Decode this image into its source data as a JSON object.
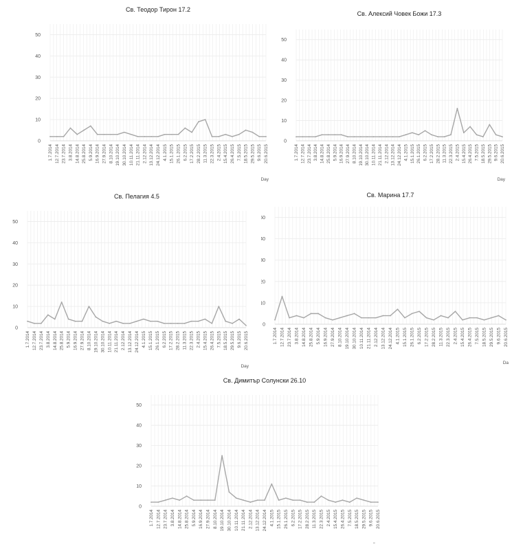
{
  "colors": {
    "line": "#a6a6a6",
    "grid": "#ebebeb",
    "axis": "#cfcfcf"
  },
  "x_ticks": [
    "1.7.2014",
    "12.7.2014",
    "23.7.2014",
    "3.8.2014",
    "14.8.2014",
    "25.8.2014",
    "5.9.2014",
    "16.9.2014",
    "27.9.2014",
    "8.10.2014",
    "19.10.2014",
    "30.10.2014",
    "10.11.2014",
    "21.11.2014",
    "2.12.2014",
    "13.12.2014",
    "24.12.2014",
    "4.1.2015",
    "15.1.2015",
    "26.1.2015",
    "6.2.2015",
    "17.2.2015",
    "28.2.2015",
    "11.3.2015",
    "22.3.2015",
    "2.4.2015",
    "15.4.2015",
    "26.4.2015",
    "7.5.2015",
    "18.5.2015",
    "29.5.2015",
    "9.6.2015",
    "20.6.2015"
  ],
  "chart_data": [
    {
      "type": "line",
      "title": "Св. Теодор Тирон 17.2",
      "xlabel": "Day",
      "ylabel": "",
      "ylim": [
        0,
        55
      ],
      "yticks": [
        0,
        10,
        20,
        30,
        40,
        50
      ],
      "grid": true,
      "x": [
        "1.7.2014",
        "12.7.2014",
        "23.7.2014",
        "3.8.2014",
        "14.8.2014",
        "25.8.2014",
        "5.9.2014",
        "16.9.2014",
        "27.9.2014",
        "8.10.2014",
        "19.10.2014",
        "30.10.2014",
        "10.11.2014",
        "21.11.2014",
        "2.12.2014",
        "13.12.2014",
        "24.12.2014",
        "4.1.2015",
        "15.1.2015",
        "26.1.2015",
        "6.2.2015",
        "17.2.2015",
        "28.2.2015",
        "11.3.2015",
        "22.3.2015",
        "2.4.2015",
        "15.4.2015",
        "26.4.2015",
        "7.5.2015",
        "18.5.2015",
        "29.5.2015",
        "9.6.2015",
        "20.6.2015"
      ],
      "values": [
        2,
        2,
        2,
        6,
        3,
        5,
        7,
        3,
        3,
        3,
        3,
        4,
        3,
        2,
        2,
        2,
        2,
        3,
        3,
        3,
        6,
        4,
        9,
        10,
        2,
        2,
        3,
        2,
        3,
        5,
        4,
        2,
        2
      ]
    },
    {
      "type": "line",
      "title": "Св. Алексий Човек Божи 17.3",
      "xlabel": "Day",
      "ylabel": "",
      "ylim": [
        0,
        55
      ],
      "yticks": [
        0,
        10,
        20,
        30,
        40,
        50
      ],
      "grid": true,
      "x": [
        "1.7.2014",
        "12.7.2014",
        "23.7.2014",
        "3.8.2014",
        "14.8.2014",
        "25.8.2014",
        "5.9.2014",
        "16.9.2014",
        "27.9.2014",
        "8.10.2014",
        "19.10.2014",
        "30.10.2014",
        "10.11.2014",
        "21.11.2014",
        "2.12.2014",
        "13.12.2014",
        "24.12.2014",
        "4.1.2015",
        "15.1.2015",
        "26.1.2015",
        "6.2.2015",
        "17.2.2015",
        "28.2.2015",
        "11.3.2015",
        "22.3.2015",
        "2.4.2015",
        "15.4.2015",
        "26.4.2015",
        "7.5.2015",
        "18.5.2015",
        "29.5.2015",
        "9.6.2015",
        "20.6.2015"
      ],
      "values": [
        2,
        2,
        2,
        2,
        3,
        3,
        3,
        3,
        2,
        2,
        2,
        2,
        2,
        2,
        2,
        2,
        2,
        3,
        4,
        3,
        5,
        3,
        2,
        2,
        3,
        16,
        4,
        7,
        3,
        2,
        8,
        3,
        2
      ]
    },
    {
      "type": "line",
      "title": "Св. Пелагия 4.5",
      "xlabel": "Day",
      "ylabel": "",
      "ylim": [
        0,
        55
      ],
      "yticks": [
        0,
        10,
        20,
        30,
        40,
        50
      ],
      "grid": true,
      "x": [
        "1.7.2014",
        "12.7.2014",
        "23.7.2014",
        "3.8.2014",
        "14.8.2014",
        "25.8.2014",
        "5.9.2014",
        "16.9.2014",
        "27.9.2014",
        "8.10.2014",
        "19.10.2014",
        "30.10.2014",
        "10.11.2014",
        "21.11.2014",
        "2.12.2014",
        "13.12.2014",
        "24.12.2014",
        "4.1.2015",
        "15.1.2015",
        "26.1.2015",
        "6.2.2015",
        "17.2.2015",
        "28.2.2015",
        "11.3.2015",
        "22.3.2015",
        "2.4.2015",
        "15.4.2015",
        "26.4.2015",
        "7.5.2015",
        "18.5.2015",
        "29.5.2015",
        "9.6.2015",
        "20.6.2015"
      ],
      "values": [
        3,
        2,
        2,
        6,
        4,
        12,
        4,
        3,
        3,
        10,
        5,
        3,
        2,
        3,
        2,
        2,
        3,
        4,
        3,
        3,
        2,
        2,
        2,
        2,
        3,
        3,
        4,
        2,
        10,
        3,
        2,
        4,
        1
      ]
    },
    {
      "type": "line",
      "title": "Св. Марина 17.7",
      "xlabel": "Da",
      "ylabel": "",
      "ylim": [
        0,
        55
      ],
      "yticks": [
        0,
        10,
        20,
        30,
        40,
        50
      ],
      "grid": true,
      "x": [
        "1.7.2014",
        "12.7.2014",
        "23.7.2014",
        "3.8.2014",
        "14.8.2014",
        "25.8.2014",
        "5.9.2014",
        "16.9.2014",
        "27.9.2014",
        "8.10.2014",
        "19.10.2014",
        "30.10.2014",
        "10.11.2014",
        "21.11.2014",
        "2.12.2014",
        "13.12.2014",
        "24.12.2014",
        "4.1.2015",
        "15.1.2015",
        "26.1.2015",
        "6.2.2015",
        "17.2.2015",
        "28.2.2015",
        "11.3.2015",
        "22.3.2015",
        "2.4.2015",
        "15.4.2015",
        "26.4.2015",
        "7.5.2015",
        "18.5.2015",
        "29.5.2015",
        "9.6.2015",
        "20.6.2015"
      ],
      "values": [
        2,
        13,
        3,
        4,
        3,
        5,
        5,
        3,
        2,
        3,
        4,
        5,
        3,
        3,
        3,
        4,
        4,
        7,
        3,
        5,
        6,
        3,
        2,
        4,
        3,
        6,
        2,
        3,
        3,
        2,
        3,
        4,
        2
      ]
    },
    {
      "type": "line",
      "title": "Св. Димитър Солунски 26.10",
      "xlabel": "Day",
      "ylabel": "",
      "ylim": [
        0,
        55
      ],
      "yticks": [
        0,
        10,
        20,
        30,
        40,
        50
      ],
      "grid": true,
      "x": [
        "1.7.2014",
        "12.7.2014",
        "23.7.2014",
        "3.8.2014",
        "14.8.2014",
        "25.8.2014",
        "5.9.2014",
        "16.9.2014",
        "27.9.2014",
        "8.10.2014",
        "19.10.2014",
        "30.10.2014",
        "10.11.2014",
        "21.11.2014",
        "2.12.2014",
        "13.12.2014",
        "24.12.2014",
        "4.1.2015",
        "15.1.2015",
        "26.1.2015",
        "6.2.2015",
        "17.2.2015",
        "28.2.2015",
        "11.3.2015",
        "22.3.2015",
        "2.4.2015",
        "15.4.2015",
        "26.4.2015",
        "7.5.2015",
        "18.5.2015",
        "29.5.2015",
        "9.6.2015",
        "20.6.2015"
      ],
      "values": [
        2,
        2,
        3,
        4,
        3,
        5,
        3,
        3,
        3,
        3,
        25,
        7,
        4,
        3,
        2,
        3,
        3,
        11,
        3,
        4,
        3,
        3,
        2,
        2,
        5,
        3,
        2,
        3,
        2,
        4,
        3,
        2,
        2
      ]
    }
  ]
}
